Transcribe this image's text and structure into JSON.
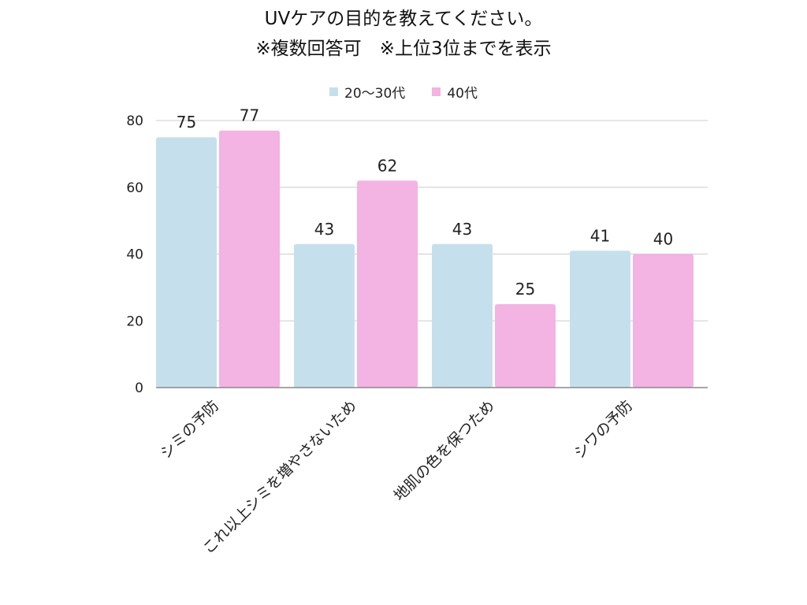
{
  "title": {
    "line1": "UVケアの目的を教えてください。",
    "line2": "※複数回答可　※上位3位までを表示"
  },
  "colors": {
    "series1": "#c5e0ec",
    "series2": "#f3b3e3",
    "grid": "#cccccc",
    "axis": "#888888",
    "text": "#222222"
  },
  "chart_data": {
    "type": "bar",
    "title": "UVケアの目的を教えてください。 ※複数回答可　※上位3位までを表示",
    "categories": [
      "シミの予防",
      "これ以上シミを増やさないため",
      "地肌の色を保つため",
      "シワの予防"
    ],
    "series": [
      {
        "name": "20〜30代",
        "values": [
          75,
          43,
          43,
          41
        ]
      },
      {
        "name": "40代",
        "values": [
          77,
          62,
          25,
          40
        ]
      }
    ],
    "yticks": [
      0,
      20,
      40,
      60,
      80
    ],
    "ylim": [
      0,
      80
    ],
    "xlabel": "",
    "ylabel": "",
    "grid": true,
    "legend": "top-center"
  }
}
